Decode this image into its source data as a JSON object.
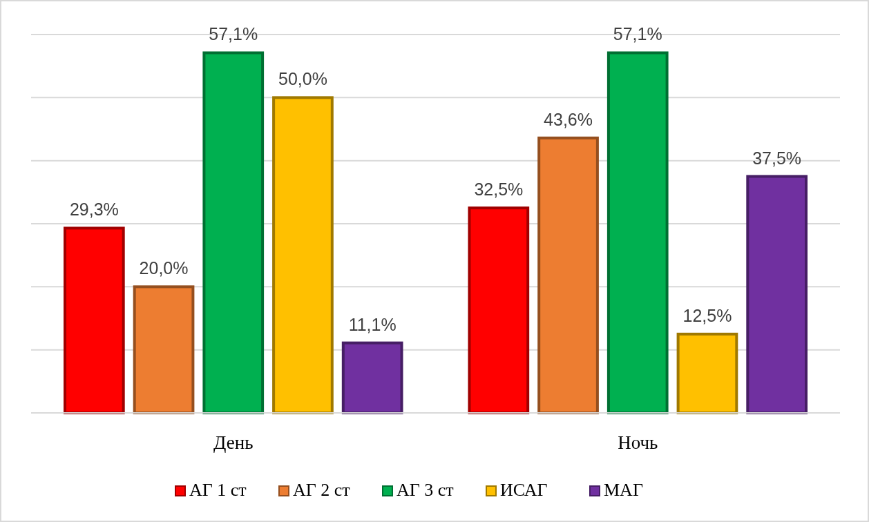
{
  "chart_data": {
    "type": "bar",
    "categories": [
      "День",
      "Ночь"
    ],
    "series": [
      {
        "name": "АГ 1 ст",
        "color": "#ff0000",
        "values": [
          29.3,
          32.5
        ],
        "value_labels": [
          "29,3%",
          "32,5%"
        ]
      },
      {
        "name": "АГ 2 ст",
        "color": "#ed7d31",
        "values": [
          20.0,
          43.6
        ],
        "value_labels": [
          "20,0%",
          "43,6%"
        ]
      },
      {
        "name": "АГ 3 ст",
        "color": "#00b050",
        "values": [
          57.1,
          57.1
        ],
        "value_labels": [
          "57,1%",
          "57,1%"
        ]
      },
      {
        "name": "ИСАГ",
        "color": "#ffc000",
        "values": [
          50.0,
          12.5
        ],
        "value_labels": [
          "50,0%",
          "12,5%"
        ]
      },
      {
        "name": "МАГ",
        "color": "#7030a0",
        "values": [
          11.1,
          37.5
        ],
        "value_labels": [
          "11,1%",
          "37,5%"
        ]
      }
    ],
    "ylim": [
      0,
      60
    ],
    "yticks": [
      {
        "value": 0,
        "label": null
      },
      {
        "value": 10,
        "label": null
      },
      {
        "value": 20,
        "label": null
      },
      {
        "value": 30,
        "label": null
      },
      {
        "value": 40,
        "label": null
      },
      {
        "value": 50,
        "label": null
      },
      {
        "value": 60,
        "label": null
      }
    ],
    "tick_labels": "x",
    "grid": "y",
    "legend": "bottom"
  }
}
